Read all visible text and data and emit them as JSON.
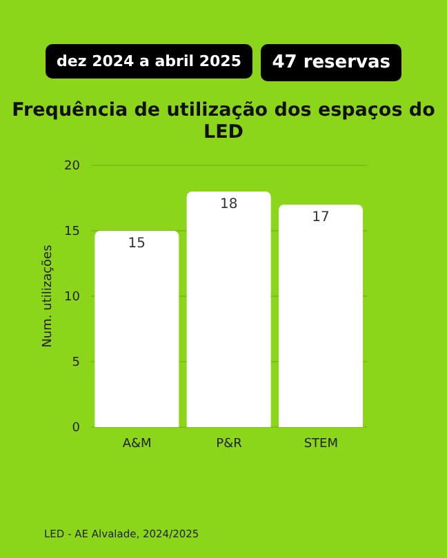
{
  "chart_data": {
    "type": "bar",
    "title": "Frequência de utilização dos espaços do LED",
    "subtitle": "dez 2024 a abril 2025",
    "annotations": [
      "47 reservas",
      "LED - AE Alvalade, 2024/2025"
    ],
    "ylabel": "Num. utilizações",
    "categories": [
      "A&M",
      "P&R",
      "STEM"
    ],
    "values": [
      15,
      18,
      17
    ],
    "color": "#ffffff",
    "ylim": [
      0,
      20
    ],
    "yticks": [
      0,
      5,
      10,
      15,
      20
    ],
    "grid": "y",
    "data_labels": true
  }
}
